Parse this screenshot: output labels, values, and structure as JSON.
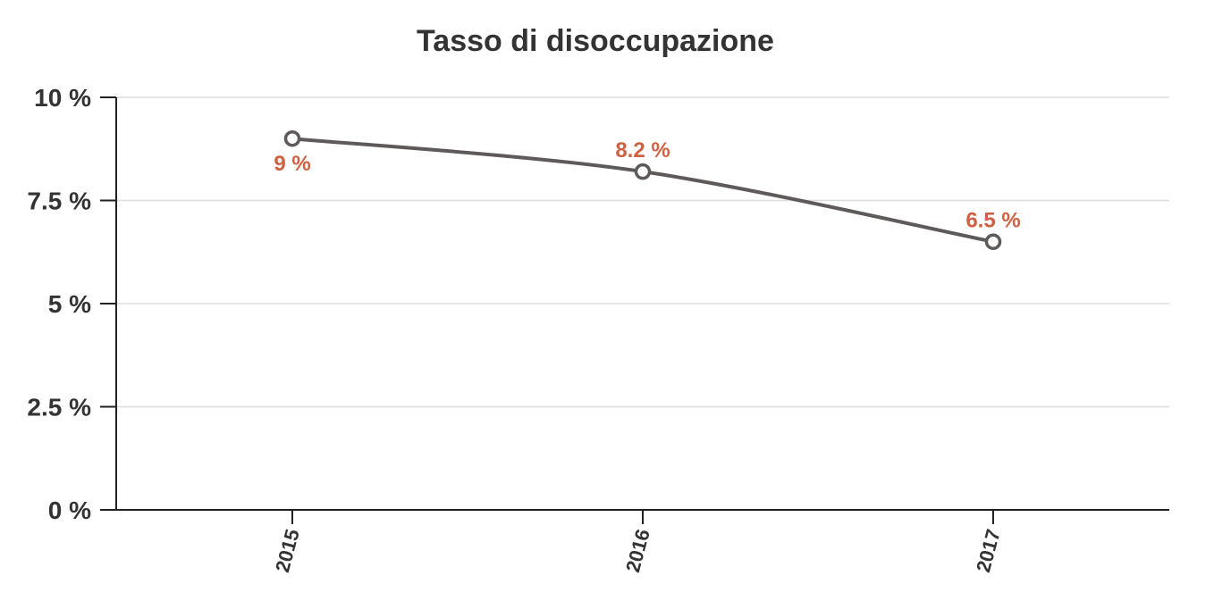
{
  "chart_data": {
    "type": "line",
    "title": "Tasso di disoccupazione",
    "xlabel": "",
    "ylabel": "",
    "categories": [
      "2015",
      "2016",
      "2017"
    ],
    "series": [
      {
        "values": [
          9,
          8.2,
          6.5
        ],
        "data_labels": [
          "9 %",
          "8.2 %",
          "6.5 %"
        ]
      }
    ],
    "ylim": [
      0,
      10
    ],
    "yticks": [
      0,
      2.5,
      5,
      7.5,
      10
    ],
    "ytick_labels": [
      "0 %",
      "2.5 %",
      "5 %",
      "7.5 %",
      "10 %"
    ],
    "grid": true,
    "legend": "none",
    "colors": {
      "line": "#5f5a5a",
      "marker_fill": "#ffffff",
      "data_label": "#cf6142",
      "grid": "#dddddd",
      "axis": "#222222",
      "text": "#333333"
    }
  }
}
